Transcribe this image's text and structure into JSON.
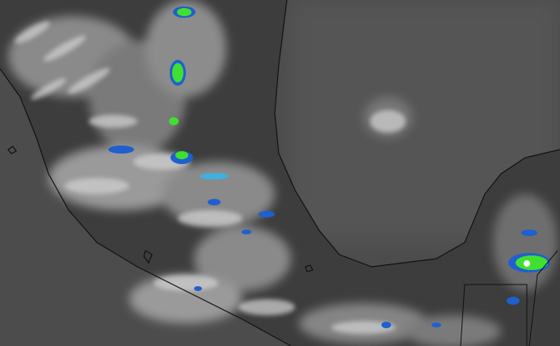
{
  "map": {
    "kind": "satellite infrared imagery",
    "colors": {
      "ocean": "#4b4b4b",
      "land": "#3e3e3e",
      "cloud": "#d8d8d8",
      "coastline": "#111111",
      "storm_blue": "#1f5fd0",
      "storm_cyan": "#3fb0e0",
      "storm_green": "#3fe030"
    }
  }
}
